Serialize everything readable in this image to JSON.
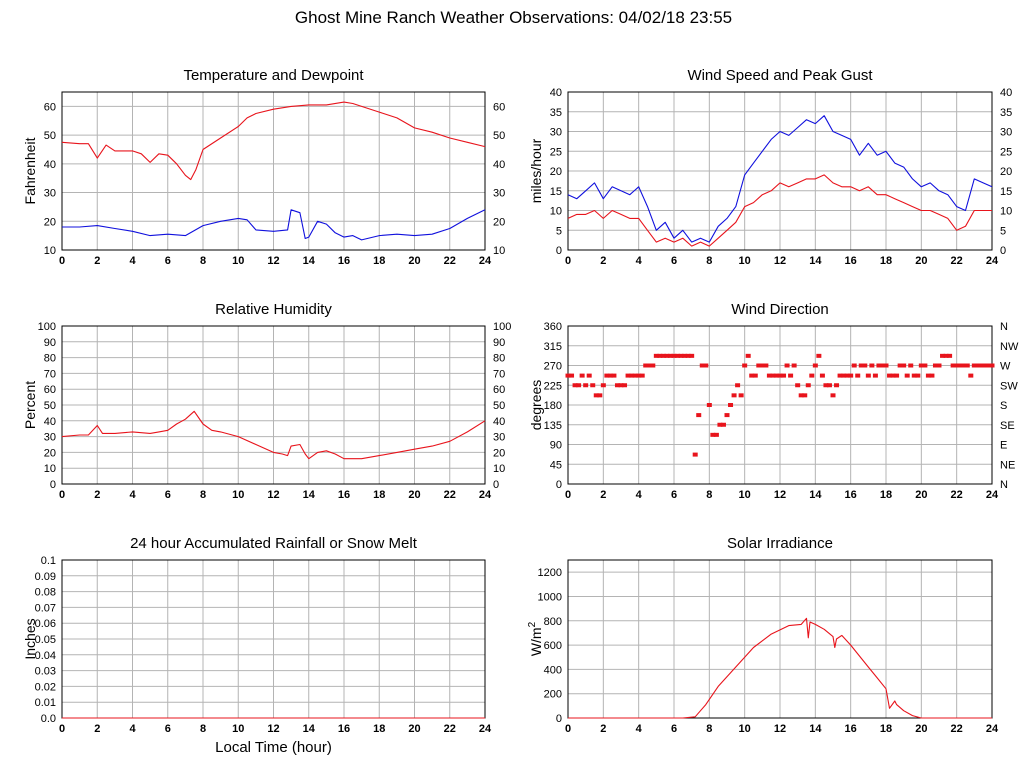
{
  "title": "Ghost Mine Ranch Weather Observations: 04/02/18 23:55",
  "x_axis_label": "Local Time (hour)",
  "colors": {
    "red": "#e8141c",
    "blue": "#1010dd",
    "grid": "#b4b4b4"
  },
  "chart_data": [
    {
      "id": "temp",
      "type": "line",
      "title": "Temperature and Dewpoint",
      "ylabel": "Fahrenheit",
      "xlim": [
        0,
        24
      ],
      "ylim": [
        10,
        65
      ],
      "xticks": [
        0,
        2,
        4,
        6,
        8,
        10,
        12,
        14,
        16,
        18,
        20,
        22,
        24
      ],
      "yticks": [
        10,
        20,
        30,
        40,
        50,
        60
      ],
      "ytick_labels": [
        "10",
        "20",
        "30",
        "40",
        "50",
        "60"
      ],
      "right_ticks": [
        "10",
        "20",
        "30",
        "40",
        "50",
        "60"
      ],
      "grid": true,
      "series": [
        {
          "color": "#e8141c",
          "x": [
            0,
            1,
            1.5,
            2,
            2.5,
            3,
            4,
            4.5,
            5,
            5.5,
            6,
            6.5,
            7,
            7.3,
            7.6,
            8,
            9,
            10,
            10.5,
            11,
            12,
            13,
            14,
            15,
            16,
            16.5,
            17,
            18,
            19,
            20,
            21,
            22,
            23,
            24
          ],
          "y": [
            47.5,
            47,
            47,
            42,
            46.5,
            44.5,
            44.5,
            43.5,
            40.5,
            43.5,
            43,
            40,
            36,
            34.5,
            38,
            45,
            49,
            53,
            56,
            57.5,
            59,
            60,
            60.5,
            60.5,
            61.5,
            61,
            60,
            58,
            56,
            52.5,
            51,
            49,
            47.5,
            46
          ]
        },
        {
          "color": "#1010dd",
          "x": [
            0,
            1,
            2,
            3,
            4,
            5,
            6,
            7,
            8,
            9,
            10,
            10.5,
            11,
            12,
            12.8,
            13,
            13.5,
            13.8,
            14,
            14.5,
            15,
            15.5,
            16,
            16.5,
            17,
            18,
            19,
            20,
            21,
            22,
            23,
            24
          ],
          "y": [
            18,
            18,
            18.5,
            17.5,
            16.5,
            15,
            15.5,
            15,
            18.5,
            20,
            21,
            20.5,
            17,
            16.5,
            17,
            24,
            23,
            14,
            14.5,
            20,
            19,
            16,
            14.5,
            15,
            13.5,
            15,
            15.5,
            15,
            15.5,
            17.5,
            21,
            24
          ]
        }
      ]
    },
    {
      "id": "wind",
      "type": "line",
      "title": "Wind Speed and Peak Gust",
      "ylabel": "miles/hour",
      "xlim": [
        0,
        24
      ],
      "ylim": [
        0,
        40
      ],
      "xticks": [
        0,
        2,
        4,
        6,
        8,
        10,
        12,
        14,
        16,
        18,
        20,
        22,
        24
      ],
      "yticks": [
        0,
        5,
        10,
        15,
        20,
        25,
        30,
        35,
        40
      ],
      "ytick_labels": [
        "0",
        "5",
        "10",
        "15",
        "20",
        "25",
        "30",
        "35",
        "40"
      ],
      "right_ticks": [
        "0",
        "5",
        "10",
        "15",
        "20",
        "25",
        "30",
        "35",
        "40"
      ],
      "grid": true,
      "series": [
        {
          "color": "#1010dd",
          "x": [
            0,
            0.5,
            1,
            1.5,
            2,
            2.5,
            3,
            3.5,
            4,
            4.5,
            5,
            5.5,
            6,
            6.5,
            7,
            7.5,
            8,
            8.5,
            9,
            9.5,
            10,
            10.5,
            11,
            11.5,
            12,
            12.5,
            13,
            13.5,
            14,
            14.5,
            15,
            15.5,
            16,
            16.5,
            17,
            17.5,
            18,
            18.5,
            19,
            19.5,
            20,
            20.5,
            21,
            21.5,
            22,
            22.5,
            23,
            23.5,
            24
          ],
          "y": [
            14,
            13,
            15,
            17,
            13,
            16,
            15,
            14,
            16,
            11,
            5,
            7,
            3,
            5,
            2,
            3,
            2,
            6,
            8,
            11,
            19,
            22,
            25,
            28,
            30,
            29,
            31,
            33,
            32,
            34,
            30,
            29,
            28,
            24,
            27,
            24,
            25,
            22,
            21,
            18,
            16,
            17,
            15,
            14,
            11,
            10,
            18,
            17,
            16
          ]
        },
        {
          "color": "#e8141c",
          "x": [
            0,
            0.5,
            1,
            1.5,
            2,
            2.5,
            3,
            3.5,
            4,
            4.5,
            5,
            5.5,
            6,
            6.5,
            7,
            7.5,
            8,
            8.5,
            9,
            9.5,
            10,
            10.5,
            11,
            11.5,
            12,
            12.5,
            13,
            13.5,
            14,
            14.5,
            15,
            15.5,
            16,
            16.5,
            17,
            17.5,
            18,
            18.5,
            19,
            19.5,
            20,
            20.5,
            21,
            21.5,
            22,
            22.5,
            23,
            23.5,
            24
          ],
          "y": [
            8,
            9,
            9,
            10,
            8,
            10,
            9,
            8,
            8,
            5,
            2,
            3,
            2,
            3,
            1,
            2,
            1,
            3,
            5,
            7,
            11,
            12,
            14,
            15,
            17,
            16,
            17,
            18,
            18,
            19,
            17,
            16,
            16,
            15,
            16,
            14,
            14,
            13,
            12,
            11,
            10,
            10,
            9,
            8,
            5,
            6,
            10,
            10,
            10
          ]
        }
      ]
    },
    {
      "id": "rh",
      "type": "line",
      "title": "Relative Humidity",
      "ylabel": "Percent",
      "xlim": [
        0,
        24
      ],
      "ylim": [
        0,
        100
      ],
      "xticks": [
        0,
        2,
        4,
        6,
        8,
        10,
        12,
        14,
        16,
        18,
        20,
        22,
        24
      ],
      "yticks": [
        0,
        10,
        20,
        30,
        40,
        50,
        60,
        70,
        80,
        90,
        100
      ],
      "ytick_labels": [
        "0",
        "10",
        "20",
        "30",
        "40",
        "50",
        "60",
        "70",
        "80",
        "90",
        "100"
      ],
      "right_ticks": [
        "0",
        "10",
        "20",
        "30",
        "40",
        "50",
        "60",
        "70",
        "80",
        "90",
        "100"
      ],
      "grid": true,
      "series": [
        {
          "color": "#e8141c",
          "x": [
            0,
            1,
            1.5,
            2,
            2.3,
            3,
            4,
            5,
            5.5,
            6,
            6.5,
            7,
            7.5,
            8,
            8.5,
            9,
            10,
            11,
            12,
            12.5,
            12.8,
            13,
            13.5,
            13.8,
            14,
            14.5,
            15,
            15.5,
            16,
            17,
            18,
            19,
            20,
            21,
            22,
            23,
            24
          ],
          "y": [
            30,
            31,
            31,
            37,
            32,
            32,
            33,
            32,
            33,
            34,
            38,
            41,
            46,
            38,
            34,
            33,
            30,
            25,
            20,
            19,
            18,
            24,
            25,
            19,
            16,
            20,
            21,
            19,
            16,
            16,
            18,
            20,
            22,
            24,
            27,
            33,
            40
          ]
        }
      ]
    },
    {
      "id": "wdir",
      "type": "scatter",
      "title": "Wind Direction",
      "ylabel": "degrees",
      "xlim": [
        0,
        24
      ],
      "ylim": [
        0,
        360
      ],
      "xticks": [
        0,
        2,
        4,
        6,
        8,
        10,
        12,
        14,
        16,
        18,
        20,
        22,
        24
      ],
      "yticks": [
        0,
        45,
        90,
        135,
        180,
        225,
        270,
        315,
        360
      ],
      "ytick_labels": [
        "0",
        "45",
        "90",
        "135",
        "180",
        "225",
        "270",
        "315",
        "360"
      ],
      "right_ticks": [
        "N",
        "NE",
        "E",
        "SE",
        "S",
        "SW",
        "W",
        "NW",
        "N"
      ],
      "grid": true,
      "series": [
        {
          "color": "#e8141c",
          "x": [
            0,
            0.2,
            0.4,
            0.6,
            0.8,
            1.0,
            1.2,
            1.4,
            1.6,
            1.8,
            2.0,
            2.2,
            2.4,
            2.6,
            2.8,
            3.0,
            3.2,
            3.4,
            3.6,
            3.8,
            4.0,
            4.2,
            4.4,
            4.6,
            4.8,
            5.0,
            5.2,
            5.4,
            5.6,
            5.8,
            6.0,
            6.2,
            6.4,
            6.6,
            6.8,
            7.0,
            7.2,
            7.4,
            7.6,
            7.8,
            8.0,
            8.2,
            8.4,
            8.6,
            8.8,
            9.0,
            9.2,
            9.4,
            9.6,
            9.8,
            10.0,
            10.2,
            10.4,
            10.6,
            10.8,
            11.0,
            11.2,
            11.4,
            11.6,
            11.8,
            12.0,
            12.2,
            12.4,
            12.6,
            12.8,
            13.0,
            13.2,
            13.4,
            13.6,
            13.8,
            14.0,
            14.2,
            14.4,
            14.6,
            14.8,
            15.0,
            15.2,
            15.4,
            15.6,
            15.8,
            16.0,
            16.2,
            16.4,
            16.6,
            16.8,
            17.0,
            17.2,
            17.4,
            17.6,
            17.8,
            18.0,
            18.2,
            18.4,
            18.6,
            18.8,
            19.0,
            19.2,
            19.4,
            19.6,
            19.8,
            20.0,
            20.2,
            20.4,
            20.6,
            20.8,
            21.0,
            21.2,
            21.4,
            21.6,
            21.8,
            22.0,
            22.2,
            22.4,
            22.6,
            22.8,
            23.0,
            23.2,
            23.4,
            23.6,
            23.8,
            24.0
          ],
          "y": [
            247,
            247,
            225,
            225,
            247,
            225,
            247,
            225,
            202,
            202,
            225,
            247,
            247,
            247,
            225,
            225,
            225,
            247,
            247,
            247,
            247,
            247,
            270,
            270,
            270,
            292,
            292,
            292,
            292,
            292,
            292,
            292,
            292,
            292,
            292,
            292,
            67,
            157,
            270,
            270,
            180,
            112,
            112,
            135,
            135,
            157,
            180,
            202,
            225,
            202,
            270,
            292,
            247,
            247,
            270,
            270,
            270,
            247,
            247,
            247,
            247,
            247,
            270,
            247,
            270,
            225,
            202,
            202,
            225,
            247,
            270,
            292,
            247,
            225,
            225,
            202,
            225,
            247,
            247,
            247,
            247,
            270,
            247,
            270,
            270,
            247,
            270,
            247,
            270,
            270,
            270,
            247,
            247,
            247,
            270,
            270,
            247,
            270,
            247,
            247,
            270,
            270,
            247,
            247,
            270,
            270,
            292,
            292,
            292,
            270,
            270,
            270,
            270,
            270,
            247,
            270,
            270,
            270,
            270,
            270,
            270
          ]
        }
      ]
    },
    {
      "id": "rain",
      "type": "line",
      "title": "24 hour Accumulated Rainfall or Snow Melt",
      "ylabel": "Inches",
      "xlim": [
        0,
        24
      ],
      "ylim": [
        0,
        0.1
      ],
      "xticks": [
        0,
        2,
        4,
        6,
        8,
        10,
        12,
        14,
        16,
        18,
        20,
        22,
        24
      ],
      "yticks": [
        0,
        0.01,
        0.02,
        0.03,
        0.04,
        0.05,
        0.06,
        0.07,
        0.08,
        0.09,
        0.1
      ],
      "ytick_labels": [
        "0.0",
        "0.01",
        "0.02",
        "0.03",
        "0.04",
        "0.05",
        "0.06",
        "0.07",
        "0.08",
        "0.09",
        "0.1"
      ],
      "right_ticks": [],
      "grid": true,
      "series": [
        {
          "color": "#e8141c",
          "x": [
            0,
            24
          ],
          "y": [
            0,
            0
          ]
        }
      ]
    },
    {
      "id": "solar",
      "type": "line",
      "title": "Solar Irradiance",
      "ylabel": "W/m",
      "ylabel_sup": "2",
      "xlim": [
        0,
        24
      ],
      "ylim": [
        0,
        1300
      ],
      "xticks": [
        0,
        2,
        4,
        6,
        8,
        10,
        12,
        14,
        16,
        18,
        20,
        22,
        24
      ],
      "yticks": [
        0,
        200,
        400,
        600,
        800,
        1000,
        1200
      ],
      "ytick_labels": [
        "0",
        "200",
        "400",
        "600",
        "800",
        "1000",
        "1200"
      ],
      "right_ticks": [],
      "grid": true,
      "series": [
        {
          "color": "#e8141c",
          "x": [
            0,
            6.5,
            7.2,
            7.5,
            7.8,
            8.5,
            9.5,
            10.5,
            11.5,
            12.5,
            13.2,
            13.5,
            13.6,
            13.7,
            14,
            14.5,
            15,
            15.1,
            15.2,
            15.5,
            16,
            17,
            17.5,
            18,
            18.2,
            18.5,
            18.6,
            19,
            19.5,
            20,
            24
          ],
          "y": [
            0,
            0,
            10,
            60,
            110,
            260,
            420,
            580,
            690,
            760,
            770,
            820,
            660,
            790,
            770,
            730,
            670,
            580,
            650,
            680,
            600,
            420,
            330,
            240,
            80,
            140,
            110,
            60,
            20,
            0,
            0
          ]
        }
      ]
    }
  ]
}
